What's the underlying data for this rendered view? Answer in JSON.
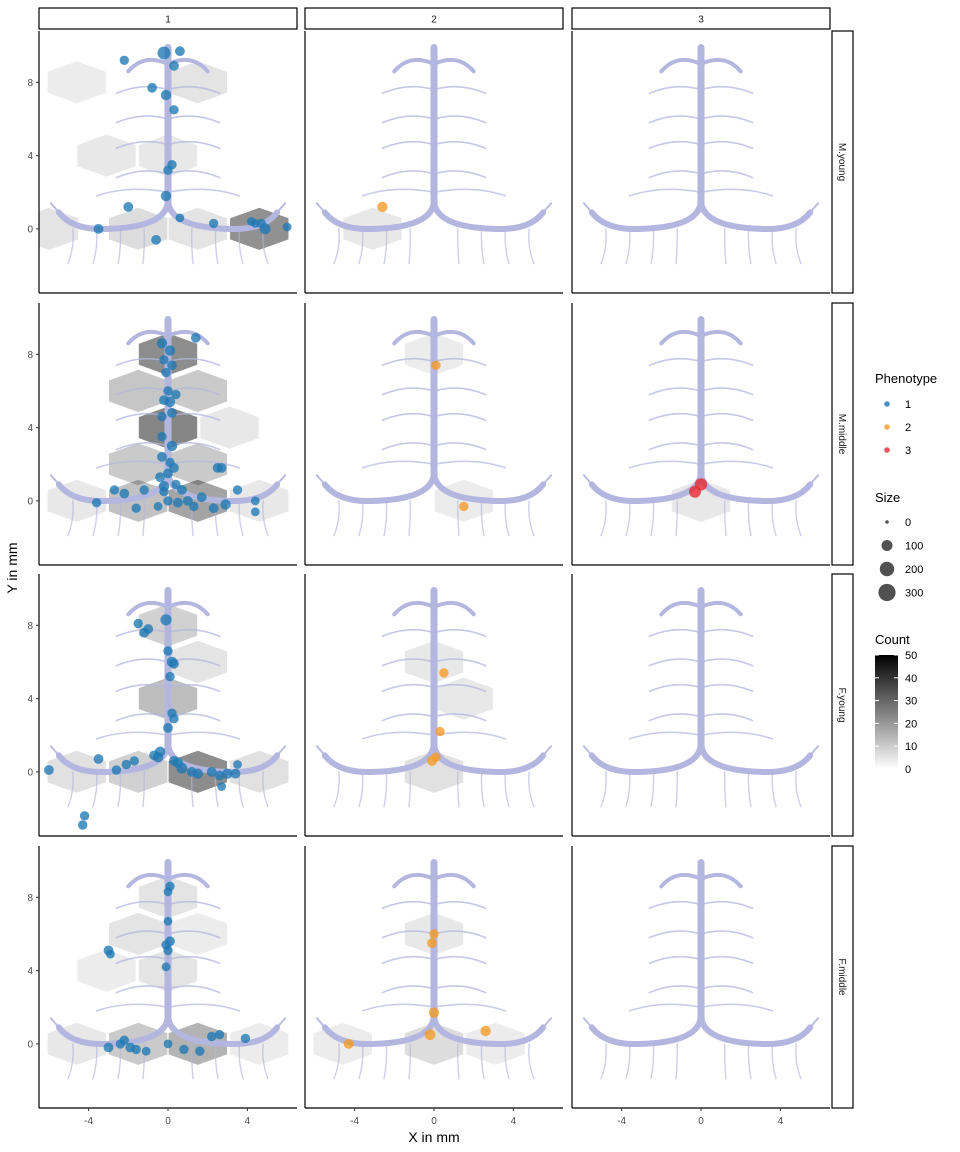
{
  "chart_data": {
    "type": "scatter",
    "xlabel": "X in mm",
    "ylabel": "Y in mm",
    "xlim": [
      -6.5,
      6.5
    ],
    "ylim": [
      -3.5,
      10.8
    ],
    "x_ticks": [
      -4,
      0,
      4
    ],
    "y_ticks": [
      0,
      4,
      8
    ],
    "columns": [
      "1",
      "2",
      "3"
    ],
    "rows": [
      "M.young",
      "M.middle",
      "F.young",
      "F.middle"
    ],
    "colors": {
      "1": "#1f78b4",
      "2": "#f59a23",
      "3": "#e8272d",
      "background_shape": "#b3b6de",
      "hex": "#000000"
    },
    "legend": {
      "phenotype": {
        "title": "Phenotype",
        "entries": [
          "1",
          "2",
          "3"
        ]
      },
      "size": {
        "title": "Size",
        "entries": [
          "0",
          "100",
          "200",
          "300"
        ]
      },
      "count": {
        "title": "Count",
        "ticks": [
          "50",
          "40",
          "30",
          "20",
          "10",
          "0"
        ],
        "range": [
          0,
          50
        ]
      }
    },
    "panels": [
      {
        "row": "M.young",
        "col": "1",
        "hexes": [
          [
            -4.6,
            8.0,
            3
          ],
          [
            1.5,
            8.0,
            5
          ],
          [
            -3.1,
            4.0,
            4
          ],
          [
            0.0,
            4.0,
            4
          ],
          [
            -6.0,
            0.0,
            5
          ],
          [
            -1.5,
            0.0,
            7
          ],
          [
            1.5,
            0.0,
            5
          ],
          [
            4.6,
            0.0,
            27
          ]
        ],
        "points": [
          [
            -2.2,
            9.2,
            50,
            "1"
          ],
          [
            -0.2,
            9.6,
            140,
            "1"
          ],
          [
            0.6,
            9.7,
            60,
            "1"
          ],
          [
            0.3,
            8.9,
            60,
            "1"
          ],
          [
            -0.8,
            7.7,
            60,
            "1"
          ],
          [
            -0.1,
            7.3,
            70,
            "1"
          ],
          [
            0.3,
            6.5,
            50,
            "1"
          ],
          [
            0.2,
            3.5,
            50,
            "1"
          ],
          [
            0.0,
            3.2,
            50,
            "1"
          ],
          [
            -0.1,
            1.8,
            70,
            "1"
          ],
          [
            -2.0,
            1.2,
            60,
            "1"
          ],
          [
            0.6,
            0.6,
            40,
            "1"
          ],
          [
            2.3,
            0.3,
            50,
            "1"
          ],
          [
            4.2,
            0.4,
            40,
            "1"
          ],
          [
            4.4,
            0.3,
            40,
            "1"
          ],
          [
            4.7,
            0.3,
            50,
            "1"
          ],
          [
            4.9,
            0.0,
            80,
            "1"
          ],
          [
            6.0,
            0.1,
            40,
            "1"
          ],
          [
            -3.5,
            0.0,
            60,
            "1"
          ],
          [
            -0.6,
            -0.6,
            60,
            "1"
          ]
        ]
      },
      {
        "row": "M.young",
        "col": "2",
        "hexes": [
          [
            -3.1,
            0.0,
            4
          ]
        ],
        "points": [
          [
            -2.6,
            1.2,
            70,
            "2"
          ]
        ]
      },
      {
        "row": "M.young",
        "col": "3",
        "hexes": [],
        "points": []
      },
      {
        "row": "M.middle",
        "col": "1",
        "hexes": [
          [
            0.0,
            8.0,
            28
          ],
          [
            -1.5,
            6.0,
            13
          ],
          [
            1.5,
            6.0,
            12
          ],
          [
            0.0,
            4.0,
            30
          ],
          [
            3.1,
            4.0,
            4
          ],
          [
            -1.5,
            2.0,
            12
          ],
          [
            1.5,
            2.0,
            12
          ],
          [
            -4.6,
            0.0,
            4
          ],
          [
            -1.5,
            0.0,
            14
          ],
          [
            1.5,
            0.0,
            22
          ],
          [
            4.6,
            0.0,
            4
          ]
        ],
        "points": [
          [
            -0.3,
            8.6,
            70,
            "1"
          ],
          [
            0.1,
            8.2,
            70,
            "1"
          ],
          [
            -0.2,
            7.7,
            50,
            "1"
          ],
          [
            0.2,
            7.4,
            60,
            "1"
          ],
          [
            -0.1,
            7.0,
            50,
            "1"
          ],
          [
            1.4,
            8.9,
            60,
            "1"
          ],
          [
            0.0,
            6.0,
            50,
            "1"
          ],
          [
            0.4,
            5.8,
            50,
            "1"
          ],
          [
            -0.2,
            5.5,
            60,
            "1"
          ],
          [
            0.1,
            5.4,
            70,
            "1"
          ],
          [
            -0.3,
            4.6,
            50,
            "1"
          ],
          [
            0.2,
            4.8,
            60,
            "1"
          ],
          [
            -0.3,
            3.5,
            50,
            "1"
          ],
          [
            0.2,
            3.0,
            70,
            "1"
          ],
          [
            -0.3,
            2.4,
            60,
            "1"
          ],
          [
            0.0,
            1.5,
            60,
            "1"
          ],
          [
            0.3,
            1.8,
            60,
            "1"
          ],
          [
            -0.4,
            1.3,
            60,
            "1"
          ],
          [
            0.4,
            0.9,
            50,
            "1"
          ],
          [
            -0.2,
            0.5,
            50,
            "1"
          ],
          [
            0.7,
            0.6,
            60,
            "1"
          ],
          [
            2.5,
            1.8,
            60,
            "1"
          ],
          [
            2.7,
            1.8,
            60,
            "1"
          ],
          [
            -2.7,
            0.6,
            50,
            "1"
          ],
          [
            -2.2,
            0.4,
            60,
            "1"
          ],
          [
            -1.2,
            0.6,
            50,
            "1"
          ],
          [
            0.0,
            0.0,
            50,
            "1"
          ],
          [
            0.5,
            -0.1,
            60,
            "1"
          ],
          [
            1.0,
            0.0,
            60,
            "1"
          ],
          [
            1.3,
            -0.3,
            50,
            "1"
          ],
          [
            1.7,
            0.2,
            60,
            "1"
          ],
          [
            2.3,
            -0.4,
            60,
            "1"
          ],
          [
            2.9,
            -0.2,
            70,
            "1"
          ],
          [
            3.5,
            0.6,
            50,
            "1"
          ],
          [
            4.4,
            0.0,
            40,
            "1"
          ],
          [
            4.4,
            -0.6,
            40,
            "1"
          ],
          [
            -3.6,
            -0.1,
            50,
            "1"
          ],
          [
            -1.6,
            -0.4,
            50,
            "1"
          ],
          [
            -0.5,
            -0.3,
            40,
            "1"
          ],
          [
            0.1,
            2.1,
            50,
            "1"
          ],
          [
            -0.2,
            0.8,
            70,
            "1"
          ]
        ]
      },
      {
        "row": "M.middle",
        "col": "2",
        "hexes": [
          [
            0.0,
            8.0,
            3
          ],
          [
            1.5,
            0.0,
            3
          ]
        ],
        "points": [
          [
            0.1,
            7.4,
            50,
            "2"
          ],
          [
            1.5,
            -0.3,
            50,
            "2"
          ]
        ]
      },
      {
        "row": "M.middle",
        "col": "3",
        "hexes": [
          [
            0.0,
            0.0,
            4
          ]
        ],
        "points": [
          [
            0.0,
            0.9,
            120,
            "3"
          ],
          [
            -0.3,
            0.5,
            110,
            "3"
          ]
        ]
      },
      {
        "row": "F.young",
        "col": "1",
        "hexes": [
          [
            0.0,
            8.0,
            10
          ],
          [
            1.5,
            6.0,
            5
          ],
          [
            0.0,
            4.0,
            15
          ],
          [
            -4.6,
            0.0,
            6
          ],
          [
            -1.5,
            0.0,
            10
          ],
          [
            1.5,
            0.0,
            28
          ],
          [
            4.6,
            0.0,
            6
          ]
        ],
        "points": [
          [
            -1.5,
            8.1,
            50,
            "1"
          ],
          [
            -1.2,
            7.6,
            60,
            "1"
          ],
          [
            -1.0,
            7.8,
            60,
            "1"
          ],
          [
            -0.1,
            8.3,
            90,
            "1"
          ],
          [
            0.0,
            6.6,
            50,
            "1"
          ],
          [
            0.2,
            6.0,
            70,
            "1"
          ],
          [
            0.3,
            5.9,
            60,
            "1"
          ],
          [
            0.1,
            5.2,
            50,
            "1"
          ],
          [
            0.2,
            3.2,
            50,
            "1"
          ],
          [
            0.3,
            2.9,
            50,
            "1"
          ],
          [
            0.0,
            2.4,
            60,
            "1"
          ],
          [
            -0.4,
            1.1,
            70,
            "1"
          ],
          [
            -0.5,
            0.8,
            70,
            "1"
          ],
          [
            -0.7,
            0.9,
            60,
            "1"
          ],
          [
            0.3,
            0.6,
            60,
            "1"
          ],
          [
            0.5,
            0.5,
            70,
            "1"
          ],
          [
            0.7,
            0.2,
            80,
            "1"
          ],
          [
            1.2,
            0.0,
            60,
            "1"
          ],
          [
            1.5,
            -0.1,
            70,
            "1"
          ],
          [
            2.2,
            0.0,
            60,
            "1"
          ],
          [
            2.6,
            -0.2,
            60,
            "1"
          ],
          [
            3.0,
            -0.1,
            70,
            "1"
          ],
          [
            3.4,
            -0.1,
            60,
            "1"
          ],
          [
            -1.7,
            0.6,
            50,
            "1"
          ],
          [
            -2.1,
            0.4,
            50,
            "1"
          ],
          [
            -2.6,
            0.1,
            50,
            "1"
          ],
          [
            -3.5,
            0.7,
            60,
            "1"
          ],
          [
            -6.0,
            0.1,
            60,
            "1"
          ],
          [
            -4.2,
            -2.4,
            50,
            "1"
          ],
          [
            -4.3,
            -2.9,
            50,
            "1"
          ],
          [
            2.7,
            -0.8,
            40,
            "1"
          ],
          [
            3.5,
            0.4,
            40,
            "1"
          ]
        ]
      },
      {
        "row": "F.young",
        "col": "2",
        "hexes": [
          [
            0.0,
            6.0,
            4
          ],
          [
            1.5,
            4.0,
            4
          ],
          [
            0.0,
            0.0,
            6
          ]
        ],
        "points": [
          [
            0.5,
            5.4,
            50,
            "2"
          ],
          [
            0.3,
            2.2,
            50,
            "2"
          ],
          [
            -0.1,
            0.6,
            60,
            "2"
          ],
          [
            0.1,
            0.8,
            50,
            "2"
          ]
        ]
      },
      {
        "row": "F.young",
        "col": "3",
        "hexes": [],
        "points": []
      },
      {
        "row": "F.middle",
        "col": "1",
        "hexes": [
          [
            0.0,
            8.0,
            5
          ],
          [
            -1.5,
            6.0,
            5
          ],
          [
            1.5,
            6.0,
            3
          ],
          [
            -3.1,
            4.0,
            3
          ],
          [
            0.0,
            4.0,
            5
          ],
          [
            -4.6,
            0.0,
            4
          ],
          [
            -1.5,
            0.0,
            12
          ],
          [
            1.5,
            0.0,
            18
          ],
          [
            4.6,
            0.0,
            3
          ]
        ],
        "points": [
          [
            0.1,
            8.6,
            50,
            "1"
          ],
          [
            0.0,
            8.3,
            40,
            "1"
          ],
          [
            0.0,
            6.7,
            40,
            "1"
          ],
          [
            0.1,
            5.6,
            60,
            "1"
          ],
          [
            -0.1,
            5.4,
            50,
            "1"
          ],
          [
            0.0,
            5.1,
            50,
            "1"
          ],
          [
            -0.1,
            4.2,
            40,
            "1"
          ],
          [
            -3.0,
            5.1,
            60,
            "1"
          ],
          [
            -2.9,
            4.9,
            40,
            "1"
          ],
          [
            -3.0,
            -0.2,
            60,
            "1"
          ],
          [
            -2.4,
            0.0,
            50,
            "1"
          ],
          [
            -2.2,
            0.2,
            50,
            "1"
          ],
          [
            -1.9,
            -0.2,
            60,
            "1"
          ],
          [
            -1.6,
            -0.3,
            50,
            "1"
          ],
          [
            -1.1,
            -0.4,
            40,
            "1"
          ],
          [
            0.0,
            0.0,
            40,
            "1"
          ],
          [
            0.8,
            -0.3,
            50,
            "1"
          ],
          [
            1.6,
            -0.4,
            50,
            "1"
          ],
          [
            2.2,
            0.4,
            50,
            "1"
          ],
          [
            2.6,
            0.5,
            50,
            "1"
          ],
          [
            3.9,
            0.3,
            50,
            "1"
          ]
        ]
      },
      {
        "row": "F.middle",
        "col": "2",
        "hexes": [
          [
            0.0,
            6.0,
            4
          ],
          [
            -4.6,
            0.0,
            3
          ],
          [
            0.0,
            0.0,
            7
          ],
          [
            3.1,
            0.0,
            3
          ]
        ],
        "points": [
          [
            0.0,
            6.0,
            50,
            "2"
          ],
          [
            -0.1,
            5.5,
            60,
            "2"
          ],
          [
            0.0,
            1.7,
            70,
            "2"
          ],
          [
            -0.2,
            0.5,
            80,
            "2"
          ],
          [
            2.6,
            0.7,
            70,
            "2"
          ],
          [
            -4.3,
            0.0,
            60,
            "2"
          ]
        ]
      },
      {
        "row": "F.middle",
        "col": "3",
        "hexes": [],
        "points": []
      }
    ]
  }
}
